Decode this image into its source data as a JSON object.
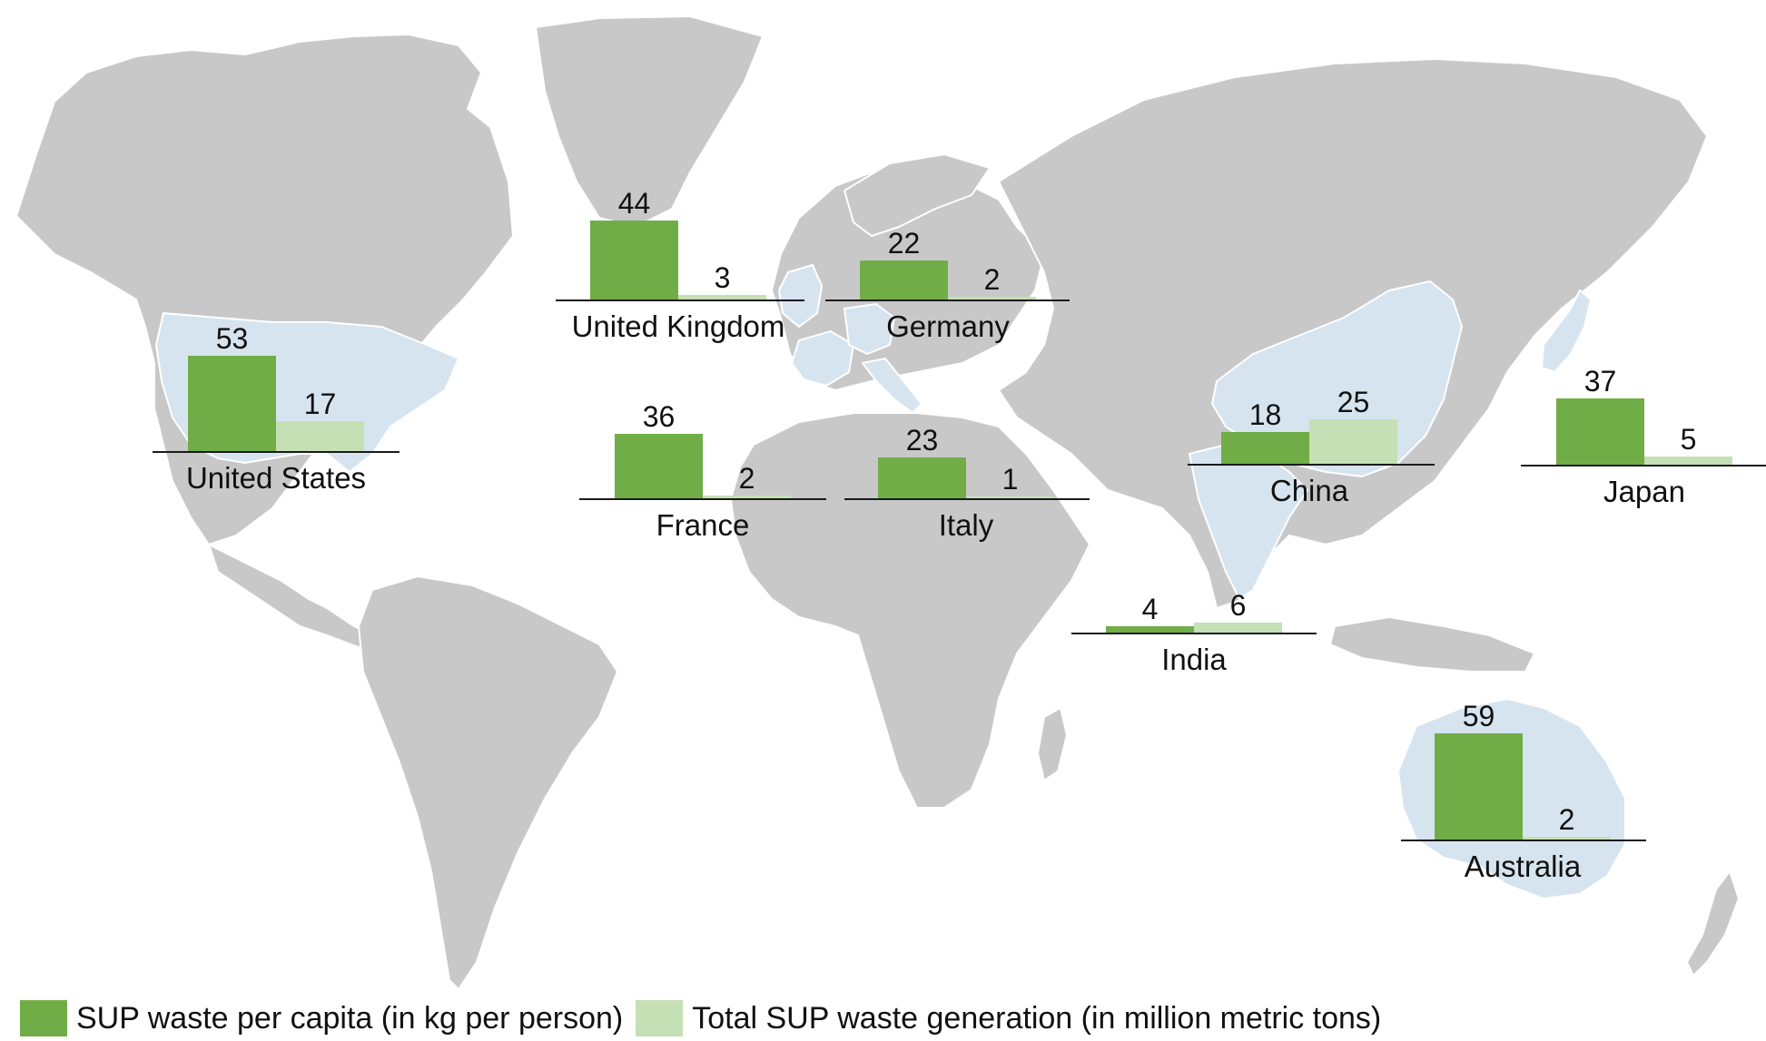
{
  "colors": {
    "per_capita": "#70ad47",
    "total": "#c5e0b4",
    "land": "#c8c8c8",
    "highlight_country": "#d6e4ef",
    "border": "#ffffff",
    "axis": "#1a1a1a"
  },
  "legend": {
    "per_capita": "SUP waste per capita (in kg per person)",
    "total": "Total SUP waste generation (in million metric tons)"
  },
  "chart_data": {
    "type": "bar",
    "categories": [
      "United States",
      "United Kingdom",
      "Germany",
      "France",
      "Italy",
      "China",
      "Japan",
      "India",
      "Australia"
    ],
    "series": [
      {
        "name": "SUP waste per capita (in kg per person)",
        "values": [
          53,
          44,
          22,
          36,
          23,
          18,
          37,
          4,
          59
        ]
      },
      {
        "name": "Total SUP waste generation (in million metric tons)",
        "values": [
          17,
          3,
          2,
          2,
          1,
          25,
          5,
          6,
          2
        ]
      }
    ],
    "title": "",
    "xlabel": "",
    "ylabel": ""
  }
}
